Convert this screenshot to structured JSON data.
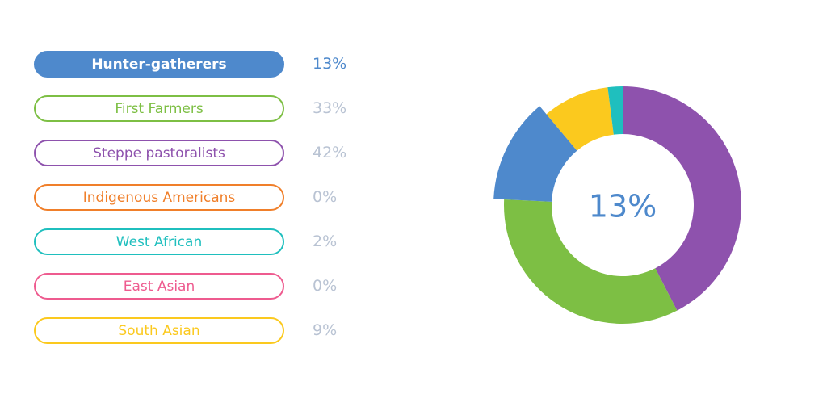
{
  "selected_index": 0,
  "center_label": "13%",
  "chart_data": {
    "type": "donut",
    "categories": [
      "Hunter-gatherers",
      "First Farmers",
      "Steppe pastoralists",
      "Indigenous Americans",
      "West African",
      "East Asian",
      "South Asian"
    ],
    "values": [
      13,
      33,
      42,
      0,
      2,
      0,
      9
    ],
    "value_labels": [
      "13%",
      "33%",
      "42%",
      "0%",
      "2%",
      "0%",
      "9%"
    ],
    "colors": [
      "#4e89cc",
      "#7dbf44",
      "#8e52ad",
      "#f07f2a",
      "#1fbfbe",
      "#ee5b8f",
      "#fbc91e"
    ],
    "highlighted": "Hunter-gatherers"
  }
}
